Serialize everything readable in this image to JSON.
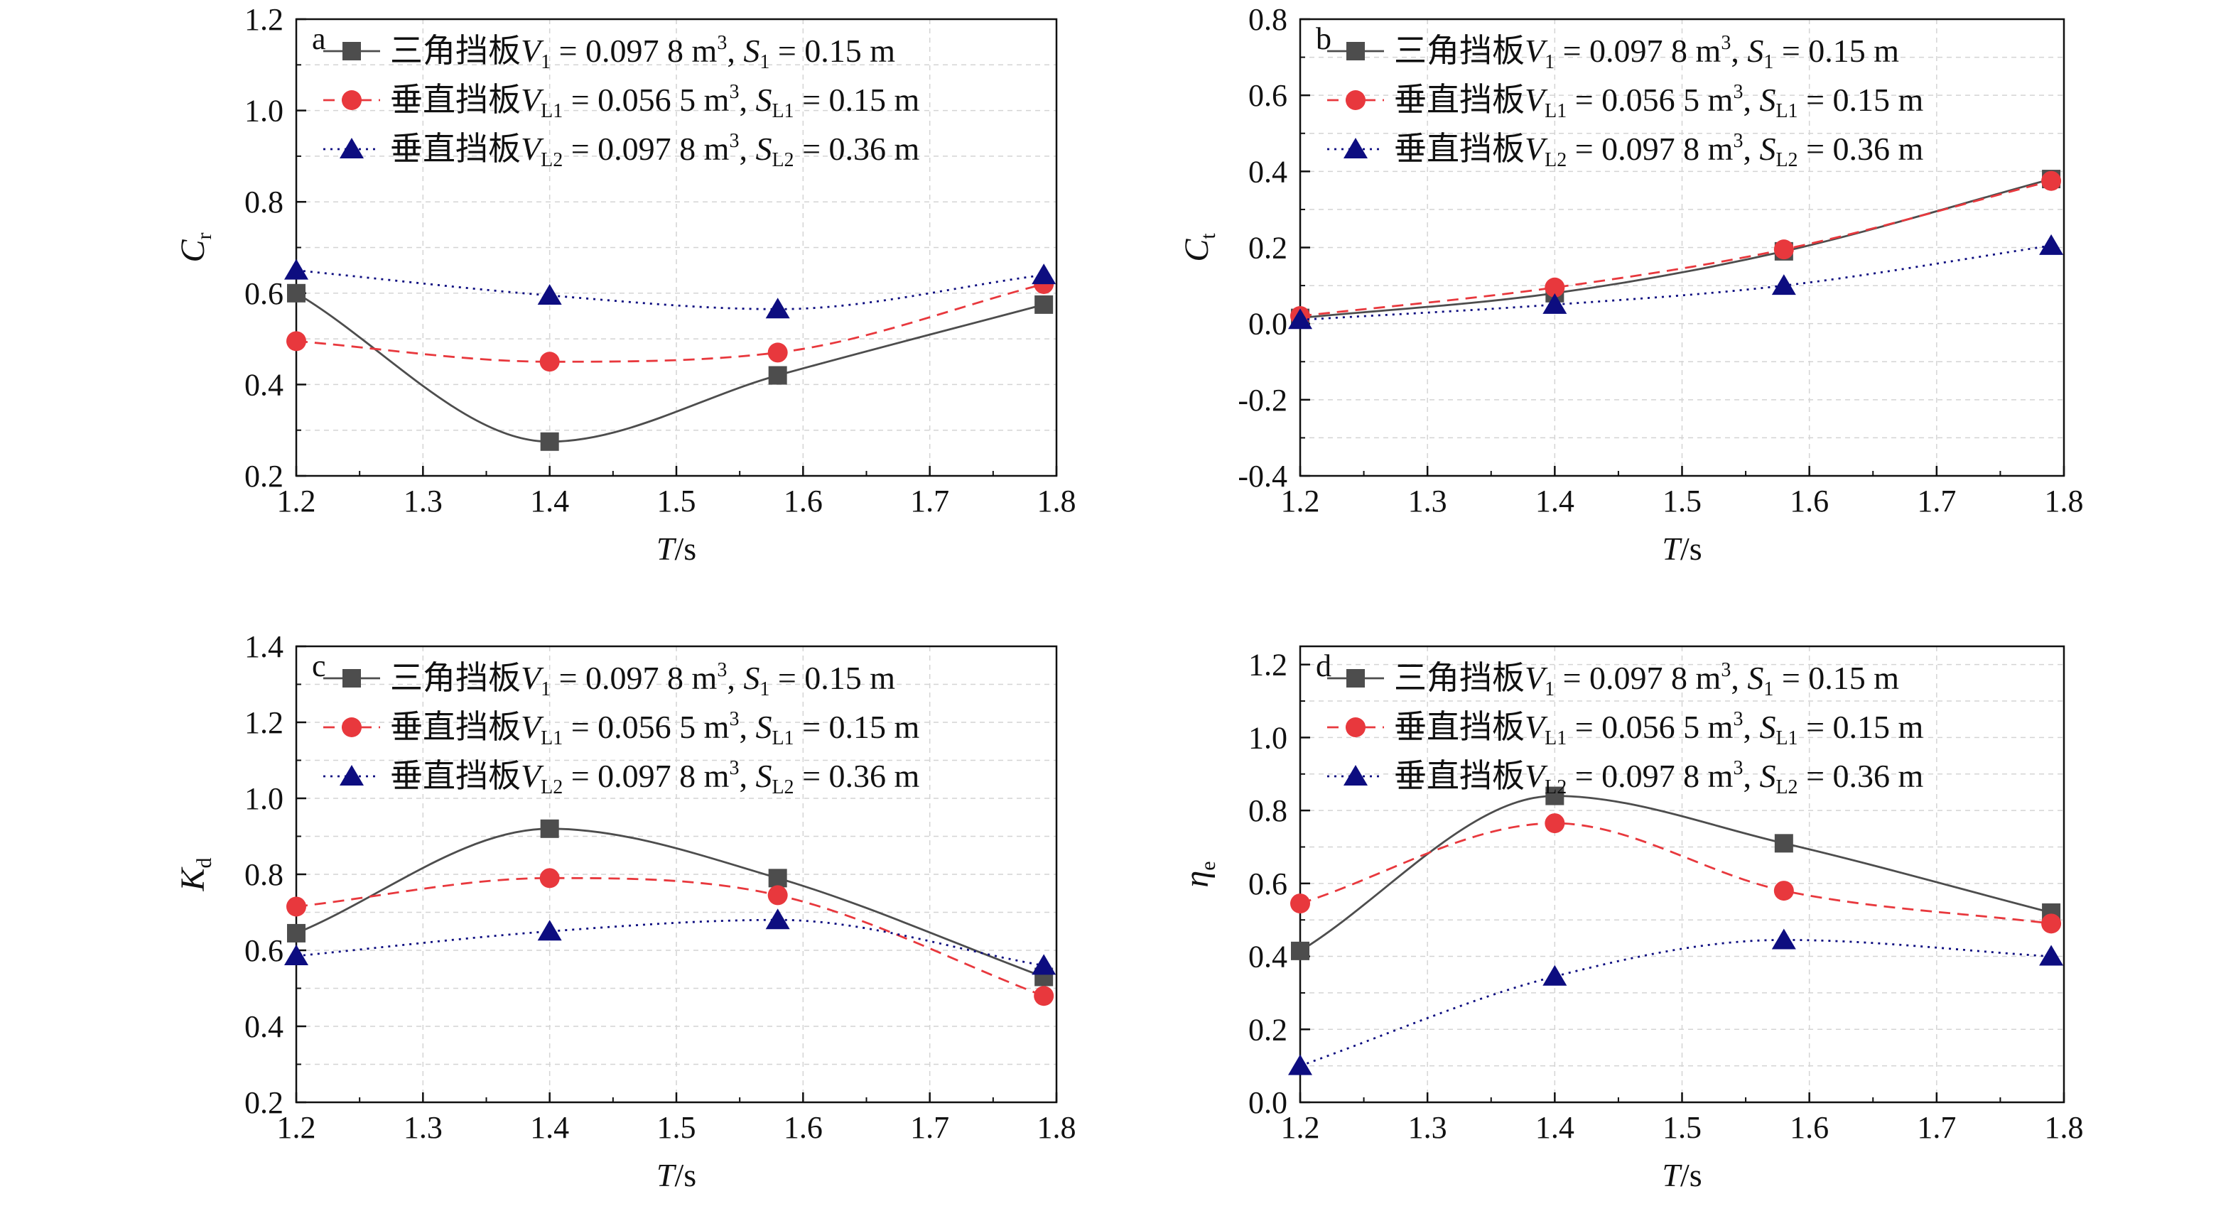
{
  "chart_data": [
    {
      "type": "line",
      "panel_label": "a",
      "ylabel": "C",
      "ylabel_sub": "r",
      "xlabel": "T/s",
      "xlim": [
        1.2,
        1.8
      ],
      "ylim": [
        0.2,
        1.2
      ],
      "xticks": [
        "1.2",
        "1.3",
        "1.4",
        "1.5",
        "1.6",
        "1.7",
        "1.8"
      ],
      "yticks": [
        "0.2",
        "0.4",
        "0.6",
        "0.8",
        "1.0",
        "1.2"
      ],
      "grid": true,
      "legend_position": "top-right",
      "x": [
        1.2,
        1.4,
        1.58,
        1.79
      ],
      "series": [
        {
          "values": [
            0.6,
            0.275,
            0.42,
            0.575
          ]
        },
        {
          "values": [
            0.495,
            0.45,
            0.47,
            0.62
          ]
        },
        {
          "values": [
            0.65,
            0.595,
            0.565,
            0.64
          ]
        }
      ]
    },
    {
      "type": "line",
      "panel_label": "b",
      "ylabel": "C",
      "ylabel_sub": "t",
      "xlabel": "T/s",
      "xlim": [
        1.2,
        1.8
      ],
      "ylim": [
        -0.4,
        0.8
      ],
      "xticks": [
        "1.2",
        "1.3",
        "1.4",
        "1.5",
        "1.6",
        "1.7",
        "1.8"
      ],
      "yticks": [
        "-0.4",
        "-0.2",
        "0.0",
        "0.2",
        "0.4",
        "0.6",
        "0.8"
      ],
      "grid": true,
      "legend_position": "top-right",
      "x": [
        1.2,
        1.4,
        1.58,
        1.79
      ],
      "series": [
        {
          "values": [
            0.015,
            0.08,
            0.19,
            0.38
          ]
        },
        {
          "values": [
            0.02,
            0.095,
            0.195,
            0.375
          ]
        },
        {
          "values": [
            0.01,
            0.05,
            0.1,
            0.205
          ]
        }
      ]
    },
    {
      "type": "line",
      "panel_label": "c",
      "ylabel": "K",
      "ylabel_sub": "d",
      "xlabel": "T/s",
      "xlim": [
        1.2,
        1.8
      ],
      "ylim": [
        0.2,
        1.4
      ],
      "xticks": [
        "1.2",
        "1.3",
        "1.4",
        "1.5",
        "1.6",
        "1.7",
        "1.8"
      ],
      "yticks": [
        "0.2",
        "0.4",
        "0.6",
        "0.8",
        "1.0",
        "1.2",
        "1.4"
      ],
      "grid": true,
      "legend_position": "top-right",
      "x": [
        1.2,
        1.4,
        1.58,
        1.79
      ],
      "series": [
        {
          "values": [
            0.645,
            0.92,
            0.79,
            0.53
          ]
        },
        {
          "values": [
            0.715,
            0.79,
            0.745,
            0.48
          ]
        },
        {
          "values": [
            0.585,
            0.65,
            0.68,
            0.56
          ]
        }
      ]
    },
    {
      "type": "line",
      "panel_label": "d",
      "ylabel": "η",
      "ylabel_sub": "e",
      "xlabel": "T/s",
      "xlim": [
        1.2,
        1.8
      ],
      "ylim": [
        0.0,
        1.25
      ],
      "xticks": [
        "1.2",
        "1.3",
        "1.4",
        "1.5",
        "1.6",
        "1.7",
        "1.8"
      ],
      "yticks": [
        "0.0",
        "0.2",
        "0.4",
        "0.6",
        "0.8",
        "1.0",
        "1.2"
      ],
      "grid": true,
      "legend_position": "top-right",
      "x": [
        1.2,
        1.4,
        1.58,
        1.79
      ],
      "series": [
        {
          "values": [
            0.415,
            0.84,
            0.71,
            0.52
          ]
        },
        {
          "values": [
            0.545,
            0.765,
            0.58,
            0.49
          ]
        },
        {
          "values": [
            0.1,
            0.345,
            0.445,
            0.4
          ]
        }
      ]
    }
  ],
  "legend": [
    {
      "name": "三角挡板",
      "var": "V",
      "var_sub": "1",
      "v_value": " = 0.097 8 m",
      "v_sup": "3",
      "sep": ", ",
      "s_var": "S",
      "s_sub": "1",
      "s_value": " = 0.15 m",
      "color": "#4d4d4d",
      "marker": "square",
      "dash": "solid"
    },
    {
      "name": "垂直挡板",
      "var": "V",
      "var_sub": "L1",
      "v_value": " = 0.056 5 m",
      "v_sup": "3",
      "sep": ", ",
      "s_var": "S",
      "s_sub": "L1",
      "s_value": " = 0.15 m",
      "color": "#e8383d",
      "marker": "circle",
      "dash": "dashed"
    },
    {
      "name": "垂直挡板",
      "var": "V",
      "var_sub": "L2",
      "v_value": " = 0.097 8 m",
      "v_sup": "3",
      "sep": ", ",
      "s_var": "S",
      "s_sub": "L2",
      "s_value": " = 0.36 m",
      "color": "#0d0d80",
      "marker": "triangle",
      "dash": "dotted"
    }
  ]
}
